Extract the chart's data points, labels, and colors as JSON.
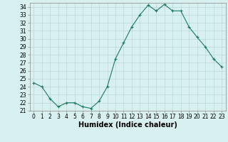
{
  "xlabel": "Humidex (Indice chaleur)",
  "ylabel": "",
  "x": [
    0,
    1,
    2,
    3,
    4,
    5,
    6,
    7,
    8,
    9,
    10,
    11,
    12,
    13,
    14,
    15,
    16,
    17,
    18,
    19,
    20,
    21,
    22,
    23
  ],
  "y": [
    24.5,
    24.0,
    22.5,
    21.5,
    22.0,
    22.0,
    21.5,
    21.3,
    22.2,
    24.0,
    27.5,
    29.5,
    31.5,
    33.0,
    34.2,
    33.5,
    34.3,
    33.5,
    33.5,
    31.5,
    30.2,
    29.0,
    27.5,
    26.5
  ],
  "line_color": "#1a7a5e",
  "marker": "+",
  "marker_size": 3,
  "bg_color": "#d8f0f0",
  "grid_color": "#b8d8d8",
  "ylim": [
    21,
    34.5
  ],
  "xlim": [
    -0.5,
    23.5
  ],
  "yticks": [
    21,
    22,
    23,
    24,
    25,
    26,
    27,
    28,
    29,
    30,
    31,
    32,
    33,
    34
  ],
  "xticks": [
    0,
    1,
    2,
    3,
    4,
    5,
    6,
    7,
    8,
    9,
    10,
    11,
    12,
    13,
    14,
    15,
    16,
    17,
    18,
    19,
    20,
    21,
    22,
    23
  ],
  "tick_fontsize": 5.5,
  "xlabel_fontsize": 7,
  "line_width": 0.8
}
